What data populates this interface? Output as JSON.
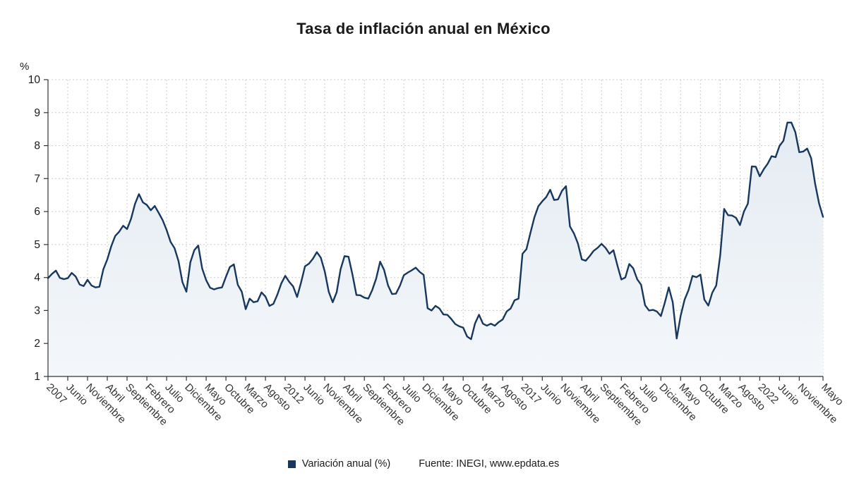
{
  "title": "Tasa de inflación anual en México",
  "legend": {
    "label": "Variación anual (%)"
  },
  "source": "Fuente: INEGI, www.epdata.es",
  "chart_data": {
    "type": "area",
    "title": "Tasa de inflación anual en México",
    "series_name": "Variación anual (%)",
    "ylabel": "%",
    "ylim": [
      1,
      10
    ],
    "y_ticks": [
      1,
      2,
      3,
      4,
      5,
      6,
      7,
      8,
      9,
      10
    ],
    "grid": "dashed",
    "legend_position": "bottom",
    "x_tick_rotation_deg": 45,
    "line_color": "#17375e",
    "fill_top": "#e4ebf2",
    "fill_bottom": "#f4f7fa",
    "grid_color": "#cccccc",
    "axis_color": "#333333",
    "tick_text_color": "#333333",
    "x_ticks": [
      {
        "i": 0,
        "label": "2007"
      },
      {
        "i": 5,
        "label": "Junio"
      },
      {
        "i": 10,
        "label": "Noviembre"
      },
      {
        "i": 15,
        "label": "Abril"
      },
      {
        "i": 20,
        "label": "Septiembre"
      },
      {
        "i": 25,
        "label": "Febrero"
      },
      {
        "i": 30,
        "label": "Julio"
      },
      {
        "i": 35,
        "label": "Diciembre"
      },
      {
        "i": 40,
        "label": "Mayo"
      },
      {
        "i": 45,
        "label": "Octubre"
      },
      {
        "i": 50,
        "label": "Marzo"
      },
      {
        "i": 55,
        "label": "Agosto"
      },
      {
        "i": 60,
        "label": "2012"
      },
      {
        "i": 65,
        "label": "Junio"
      },
      {
        "i": 70,
        "label": "Noviembre"
      },
      {
        "i": 75,
        "label": "Abril"
      },
      {
        "i": 80,
        "label": "Septiembre"
      },
      {
        "i": 85,
        "label": "Febrero"
      },
      {
        "i": 90,
        "label": "Julio"
      },
      {
        "i": 95,
        "label": "Diciembre"
      },
      {
        "i": 100,
        "label": "Mayo"
      },
      {
        "i": 105,
        "label": "Octubre"
      },
      {
        "i": 110,
        "label": "Marzo"
      },
      {
        "i": 115,
        "label": "Agosto"
      },
      {
        "i": 120,
        "label": "2017"
      },
      {
        "i": 125,
        "label": "Junio"
      },
      {
        "i": 130,
        "label": "Noviembre"
      },
      {
        "i": 135,
        "label": "Abril"
      },
      {
        "i": 140,
        "label": "Septiembre"
      },
      {
        "i": 145,
        "label": "Febrero"
      },
      {
        "i": 150,
        "label": "Julio"
      },
      {
        "i": 155,
        "label": "Diciembre"
      },
      {
        "i": 160,
        "label": "Mayo"
      },
      {
        "i": 165,
        "label": "Octubre"
      },
      {
        "i": 170,
        "label": "Marzo"
      },
      {
        "i": 175,
        "label": "Agosto"
      },
      {
        "i": 180,
        "label": "2022"
      },
      {
        "i": 185,
        "label": "Junio"
      },
      {
        "i": 190,
        "label": "Noviembre"
      },
      {
        "i": 196,
        "label": "Mayo"
      }
    ],
    "values": [
      3.98,
      4.11,
      4.21,
      3.99,
      3.95,
      3.98,
      4.14,
      4.03,
      3.79,
      3.74,
      3.93,
      3.76,
      3.7,
      3.72,
      4.25,
      4.55,
      4.95,
      5.26,
      5.39,
      5.57,
      5.47,
      5.78,
      6.23,
      6.53,
      6.28,
      6.2,
      6.04,
      6.17,
      5.96,
      5.74,
      5.44,
      5.08,
      4.89,
      4.5,
      3.86,
      3.57,
      4.46,
      4.83,
      4.97,
      4.27,
      3.92,
      3.69,
      3.64,
      3.68,
      3.7,
      4.02,
      4.32,
      4.4,
      3.78,
      3.57,
      3.04,
      3.36,
      3.25,
      3.28,
      3.55,
      3.42,
      3.14,
      3.2,
      3.48,
      3.82,
      4.05,
      3.87,
      3.73,
      3.41,
      3.85,
      4.34,
      4.42,
      4.57,
      4.77,
      4.6,
      4.18,
      3.57,
      3.25,
      3.55,
      4.25,
      4.65,
      4.63,
      4.09,
      3.47,
      3.46,
      3.39,
      3.36,
      3.62,
      3.97,
      4.48,
      4.23,
      3.76,
      3.5,
      3.51,
      3.75,
      4.07,
      4.15,
      4.22,
      4.3,
      4.17,
      4.08,
      3.07,
      3.0,
      3.14,
      3.06,
      2.88,
      2.87,
      2.74,
      2.59,
      2.52,
      2.48,
      2.21,
      2.13,
      2.61,
      2.87,
      2.6,
      2.54,
      2.6,
      2.54,
      2.65,
      2.73,
      2.97,
      3.06,
      3.31,
      3.36,
      4.72,
      4.86,
      5.35,
      5.82,
      6.16,
      6.31,
      6.44,
      6.66,
      6.35,
      6.37,
      6.63,
      6.77,
      5.55,
      5.34,
      5.04,
      4.55,
      4.51,
      4.65,
      4.81,
      4.9,
      5.02,
      4.9,
      4.72,
      4.83,
      4.37,
      3.94,
      4.0,
      4.41,
      4.28,
      3.95,
      3.78,
      3.16,
      3.0,
      3.02,
      2.97,
      2.83,
      3.24,
      3.7,
      3.25,
      2.15,
      2.84,
      3.33,
      3.62,
      4.05,
      4.01,
      4.09,
      3.33,
      3.15,
      3.54,
      3.76,
      4.67,
      6.08,
      5.89,
      5.88,
      5.81,
      5.59,
      6.0,
      6.24,
      7.37,
      7.36,
      7.07,
      7.28,
      7.45,
      7.68,
      7.65,
      7.99,
      8.15,
      8.7,
      8.7,
      8.41,
      7.8,
      7.82,
      7.91,
      7.62,
      6.85,
      6.25,
      5.84
    ]
  }
}
